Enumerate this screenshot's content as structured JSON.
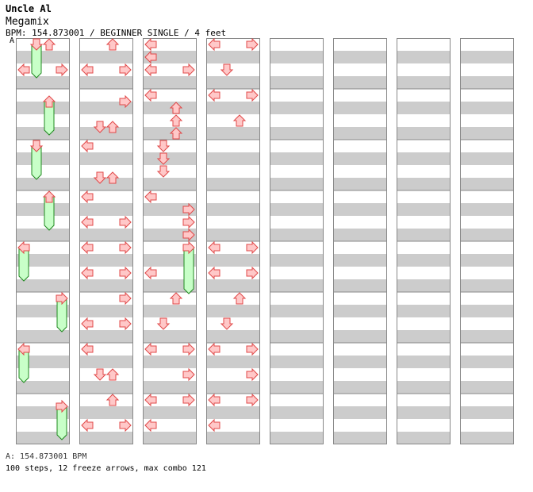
{
  "song": {
    "artist": "Uncle Al",
    "title": "Megamix",
    "info": "BPM: 154.873001 / BEGINNER SINGLE / 4 feet"
  },
  "bpm_marker": "A",
  "footer": {
    "bpm_line": "A: 154.873001 BPM",
    "stats": "100 steps, 12 freeze arrows, max combo 121"
  },
  "colors": {
    "arrow_fill": "#ffc8c8",
    "arrow_stroke": "#e04848",
    "freeze_fill": "#c8ffc8",
    "freeze_stroke": "#208820",
    "band_gray": "#cccccc",
    "border": "#888888"
  },
  "chart_data": {
    "type": "step-chart",
    "mode": "BEGINNER SINGLE",
    "bpm": 154.873001,
    "lanes": [
      "left",
      "down",
      "up",
      "right"
    ],
    "beats_per_measure": 4,
    "notes": [
      {
        "c": 0,
        "m": 0,
        "b": 0,
        "lane": 1,
        "freeze": 2.5
      },
      {
        "c": 0,
        "m": 1,
        "b": 0.5,
        "lane": 2,
        "freeze": 2.5
      },
      {
        "c": 0,
        "m": 2,
        "b": 0,
        "lane": 1,
        "freeze": 2.5
      },
      {
        "c": 0,
        "m": 3,
        "b": 0,
        "lane": 2,
        "freeze": 2.5
      },
      {
        "c": 0,
        "m": 4,
        "b": 0,
        "lane": 0,
        "freeze": 2.5
      },
      {
        "c": 0,
        "m": 5,
        "b": 0,
        "lane": 3,
        "freeze": 2.5
      },
      {
        "c": 0,
        "m": 6,
        "b": 0,
        "lane": 0,
        "freeze": 2.5
      },
      {
        "c": 0,
        "m": 7,
        "b": 0.5,
        "lane": 3,
        "freeze": 2.5
      },
      {
        "c": 1,
        "m": 0,
        "b": 0,
        "lane": 2
      },
      {
        "c": 1,
        "m": 0,
        "b": 2,
        "lane": 0
      },
      {
        "c": 1,
        "m": 0,
        "b": 2,
        "lane": 3
      },
      {
        "c": 1,
        "m": 1,
        "b": 0.5,
        "lane": 3
      },
      {
        "c": 1,
        "m": 1,
        "b": 2.5,
        "lane": 1
      },
      {
        "c": 1,
        "m": 1,
        "b": 2.5,
        "lane": 2
      },
      {
        "c": 1,
        "m": 2,
        "b": 0,
        "lane": 0
      },
      {
        "c": 1,
        "m": 2,
        "b": 2.5,
        "lane": 1
      },
      {
        "c": 1,
        "m": 2,
        "b": 2.5,
        "lane": 2
      },
      {
        "c": 1,
        "m": 3,
        "b": 0,
        "lane": 0
      },
      {
        "c": 1,
        "m": 3,
        "b": 2,
        "lane": 0
      },
      {
        "c": 1,
        "m": 3,
        "b": 2,
        "lane": 3
      },
      {
        "c": 1,
        "m": 4,
        "b": 0,
        "lane": 0
      },
      {
        "c": 1,
        "m": 4,
        "b": 0,
        "lane": 3
      },
      {
        "c": 1,
        "m": 4,
        "b": 2,
        "lane": 0
      },
      {
        "c": 1,
        "m": 4,
        "b": 2,
        "lane": 3
      },
      {
        "c": 1,
        "m": 5,
        "b": 0,
        "lane": 3
      },
      {
        "c": 1,
        "m": 5,
        "b": 2,
        "lane": 0
      },
      {
        "c": 1,
        "m": 5,
        "b": 2,
        "lane": 3
      },
      {
        "c": 1,
        "m": 6,
        "b": 0,
        "lane": 0
      },
      {
        "c": 1,
        "m": 6,
        "b": 2,
        "lane": 1
      },
      {
        "c": 1,
        "m": 6,
        "b": 2,
        "lane": 2
      },
      {
        "c": 1,
        "m": 7,
        "b": 0,
        "lane": 2
      },
      {
        "c": 1,
        "m": 7,
        "b": 2,
        "lane": 0
      },
      {
        "c": 1,
        "m": 7,
        "b": 2,
        "lane": 3
      },
      {
        "c": 2,
        "m": 0,
        "b": 0,
        "lane": 0
      },
      {
        "c": 2,
        "m": 0,
        "b": 1,
        "lane": 0
      },
      {
        "c": 2,
        "m": 0,
        "b": 2,
        "lane": 0
      },
      {
        "c": 2,
        "m": 0,
        "b": 2,
        "lane": 3
      },
      {
        "c": 2,
        "m": 1,
        "b": 0,
        "lane": 0
      },
      {
        "c": 2,
        "m": 1,
        "b": 1,
        "lane": 2
      },
      {
        "c": 2,
        "m": 1,
        "b": 2,
        "lane": 2
      },
      {
        "c": 2,
        "m": 1,
        "b": 3,
        "lane": 2
      },
      {
        "c": 2,
        "m": 2,
        "b": 0,
        "lane": 1
      },
      {
        "c": 2,
        "m": 2,
        "b": 1,
        "lane": 1
      },
      {
        "c": 2,
        "m": 2,
        "b": 2,
        "lane": 1
      },
      {
        "c": 2,
        "m": 3,
        "b": 0,
        "lane": 0
      },
      {
        "c": 2,
        "m": 3,
        "b": 1,
        "lane": 3
      },
      {
        "c": 2,
        "m": 3,
        "b": 2,
        "lane": 3
      },
      {
        "c": 2,
        "m": 3,
        "b": 3,
        "lane": 3
      },
      {
        "c": 2,
        "m": 4,
        "b": 0,
        "lane": 3,
        "freeze": 3.5
      },
      {
        "c": 2,
        "m": 4,
        "b": 2,
        "lane": 0
      },
      {
        "c": 2,
        "m": 5,
        "b": 0,
        "lane": 2
      },
      {
        "c": 2,
        "m": 5,
        "b": 2,
        "lane": 1
      },
      {
        "c": 2,
        "m": 6,
        "b": 0,
        "lane": 0
      },
      {
        "c": 2,
        "m": 6,
        "b": 0,
        "lane": 3
      },
      {
        "c": 2,
        "m": 6,
        "b": 2,
        "lane": 3
      },
      {
        "c": 2,
        "m": 7,
        "b": 0,
        "lane": 0
      },
      {
        "c": 2,
        "m": 7,
        "b": 0,
        "lane": 3
      },
      {
        "c": 2,
        "m": 7,
        "b": 2,
        "lane": 0
      },
      {
        "c": 3,
        "m": 0,
        "b": 0,
        "lane": 0
      },
      {
        "c": 3,
        "m": 0,
        "b": 0,
        "lane": 3
      },
      {
        "c": 3,
        "m": 0,
        "b": 2,
        "lane": 1
      },
      {
        "c": 3,
        "m": 1,
        "b": 0,
        "lane": 0
      },
      {
        "c": 3,
        "m": 1,
        "b": 0,
        "lane": 3
      },
      {
        "c": 3,
        "m": 1,
        "b": 2,
        "lane": 2
      },
      {
        "c": 3,
        "m": 4,
        "b": 0,
        "lane": 0
      },
      {
        "c": 3,
        "m": 4,
        "b": 0,
        "lane": 3
      },
      {
        "c": 3,
        "m": 4,
        "b": 2,
        "lane": 0
      },
      {
        "c": 3,
        "m": 4,
        "b": 2,
        "lane": 3
      },
      {
        "c": 3,
        "m": 5,
        "b": 0,
        "lane": 2
      },
      {
        "c": 3,
        "m": 5,
        "b": 2,
        "lane": 1
      },
      {
        "c": 3,
        "m": 6,
        "b": 0,
        "lane": 0
      },
      {
        "c": 3,
        "m": 6,
        "b": 0,
        "lane": 3
      },
      {
        "c": 3,
        "m": 6,
        "b": 2,
        "lane": 3
      },
      {
        "c": 3,
        "m": 7,
        "b": 0,
        "lane": 0
      },
      {
        "c": 3,
        "m": 7,
        "b": 0,
        "lane": 3
      },
      {
        "c": 3,
        "m": 7,
        "b": 2,
        "lane": 0
      }
    ],
    "notes_extra": [
      {
        "c": 0,
        "m": 0,
        "b": 0,
        "lane": 2
      },
      {
        "c": 0,
        "m": 0,
        "b": 2,
        "lane": 0
      },
      {
        "c": 0,
        "m": 0,
        "b": 2,
        "lane": 3
      }
    ]
  }
}
